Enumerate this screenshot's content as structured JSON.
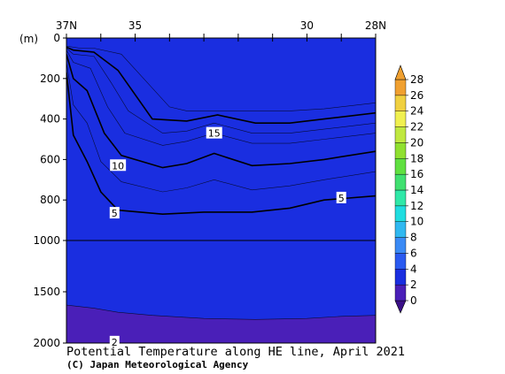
{
  "chart_data": {
    "type": "contour",
    "title": "Potential Temperature along HE line, April 2021",
    "credit": "(C) Japan Meteorological Agency",
    "x_ticks_top": [
      "37N",
      "35",
      "30",
      "28N"
    ],
    "x_range": [
      37,
      28
    ],
    "y_unit_label": "(m)",
    "y_ticks": [
      "0",
      "200",
      "400",
      "600",
      "800",
      "1000",
      "1500",
      "2000"
    ],
    "y_range": [
      0,
      2000
    ],
    "y_scale_note": "depth axis is stretched above 1000 m",
    "colorbar": {
      "labels": [
        "28",
        "26",
        "24",
        "22",
        "20",
        "18",
        "16",
        "14",
        "12",
        "10",
        "8",
        "6",
        "4",
        "2",
        "0"
      ],
      "colors": [
        "#3b0f88",
        "#4a1fb8",
        "#1a2ee0",
        "#2a5af0",
        "#3a8af5",
        "#30b8f0",
        "#20dde0",
        "#30e8a8",
        "#40e070",
        "#60e040",
        "#90e030",
        "#c0e840",
        "#f0f050",
        "#f0d040",
        "#f0a030"
      ]
    },
    "contour_labels": [
      {
        "text": "15",
        "lat": 32.7,
        "depth": 470
      },
      {
        "text": "10",
        "lat": 35.5,
        "depth": 630
      },
      {
        "text": "5",
        "lat": 35.6,
        "depth": 865
      },
      {
        "text": "5",
        "lat": 29.0,
        "depth": 790
      },
      {
        "text": "2",
        "lat": 35.6,
        "depth": 1990
      }
    ],
    "bands": [
      {
        "value": 18,
        "color": "#40e070",
        "depth": [
          [
            37,
            40
          ],
          [
            36.6,
            50
          ],
          [
            36.2,
            50
          ],
          [
            35.4,
            80
          ],
          [
            34.0,
            340
          ],
          [
            33.5,
            360
          ],
          [
            32.5,
            360
          ],
          [
            30.5,
            360
          ],
          [
            29.5,
            350
          ],
          [
            28,
            320
          ]
        ]
      },
      {
        "value": 16,
        "color": "#30e8a8",
        "depth": [
          [
            37,
            45
          ],
          [
            36.8,
            60
          ],
          [
            36.2,
            70
          ],
          [
            35.5,
            160
          ],
          [
            34.5,
            400
          ],
          [
            33.5,
            410
          ],
          [
            32.6,
            380
          ],
          [
            31.5,
            420
          ],
          [
            30.5,
            420
          ],
          [
            29.5,
            400
          ],
          [
            28,
            370
          ]
        ]
      },
      {
        "value": 14,
        "color": "#20dde0",
        "depth": [
          [
            37,
            50
          ],
          [
            36.8,
            80
          ],
          [
            36.2,
            90
          ],
          [
            35.7,
            220
          ],
          [
            35.2,
            360
          ],
          [
            34.2,
            470
          ],
          [
            33.5,
            460
          ],
          [
            32.7,
            420
          ],
          [
            31.6,
            470
          ],
          [
            30.5,
            470
          ],
          [
            29.5,
            450
          ],
          [
            28,
            420
          ]
        ]
      },
      {
        "value": 12,
        "color": "#30b8f0",
        "depth": [
          [
            37,
            60
          ],
          [
            36.8,
            120
          ],
          [
            36.3,
            150
          ],
          [
            35.8,
            340
          ],
          [
            35.3,
            470
          ],
          [
            34.2,
            530
          ],
          [
            33.5,
            510
          ],
          [
            32.7,
            470
          ],
          [
            31.6,
            520
          ],
          [
            30.5,
            520
          ],
          [
            29.5,
            500
          ],
          [
            28,
            470
          ]
        ]
      },
      {
        "value": 10,
        "color": "#3a8af5",
        "depth": [
          [
            37,
            80
          ],
          [
            36.8,
            200
          ],
          [
            36.4,
            260
          ],
          [
            35.9,
            470
          ],
          [
            35.4,
            580
          ],
          [
            34.2,
            640
          ],
          [
            33.5,
            620
          ],
          [
            32.7,
            570
          ],
          [
            31.6,
            630
          ],
          [
            30.5,
            620
          ],
          [
            29.5,
            600
          ],
          [
            28,
            560
          ]
        ]
      },
      {
        "value": 8,
        "color": "#2a5af0",
        "depth": [
          [
            37,
            120
          ],
          [
            36.8,
            330
          ],
          [
            36.4,
            420
          ],
          [
            36.0,
            610
          ],
          [
            35.4,
            710
          ],
          [
            34.2,
            760
          ],
          [
            33.5,
            740
          ],
          [
            32.7,
            700
          ],
          [
            31.6,
            750
          ],
          [
            30.5,
            730
          ],
          [
            29.5,
            700
          ],
          [
            28,
            660
          ]
        ]
      },
      {
        "value": 6,
        "color": "#1a2ee0",
        "depth": [
          [
            37,
            170
          ],
          [
            36.8,
            480
          ],
          [
            36.4,
            610
          ],
          [
            36.0,
            760
          ],
          [
            35.5,
            850
          ],
          [
            34.2,
            870
          ],
          [
            33.0,
            860
          ],
          [
            31.6,
            860
          ],
          [
            30.5,
            840
          ],
          [
            29.5,
            800
          ],
          [
            28,
            780
          ]
        ]
      },
      {
        "value": 4,
        "color": "#4a1fb8",
        "depth": [
          [
            37,
            1630
          ],
          [
            36.2,
            1660
          ],
          [
            35.5,
            1700
          ],
          [
            34.5,
            1730
          ],
          [
            33.0,
            1760
          ],
          [
            31.5,
            1770
          ],
          [
            30.0,
            1760
          ],
          [
            29.0,
            1740
          ],
          [
            28,
            1730
          ]
        ]
      }
    ]
  }
}
